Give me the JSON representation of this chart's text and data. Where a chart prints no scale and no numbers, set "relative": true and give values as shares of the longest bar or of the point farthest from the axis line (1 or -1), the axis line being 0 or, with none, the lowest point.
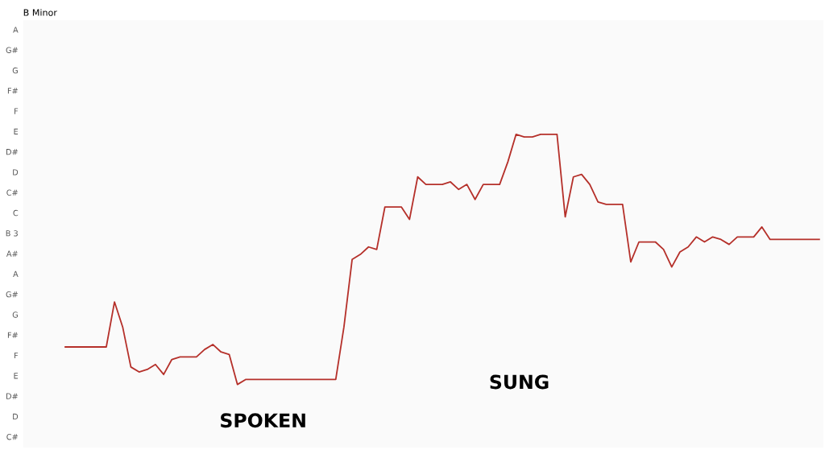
{
  "chart_data": {
    "type": "line",
    "title": "B Minor",
    "relative": true,
    "categories": [
      null,
      null,
      null,
      null,
      null,
      null,
      null,
      null,
      null,
      null,
      null,
      null,
      null,
      null,
      null,
      null,
      null,
      null,
      null,
      null,
      null,
      null,
      null,
      null,
      null,
      null,
      null,
      null,
      null,
      null,
      null,
      null,
      null,
      null,
      null,
      null,
      null,
      null,
      null,
      null,
      null,
      null,
      null,
      null,
      null,
      null,
      null,
      null,
      null,
      null,
      null,
      null,
      null,
      null,
      null,
      null,
      null,
      null,
      null,
      null,
      null,
      null,
      null,
      null,
      null,
      null,
      null,
      null,
      null,
      null,
      null,
      null,
      null,
      null,
      null,
      null,
      null,
      null,
      null,
      null,
      null,
      null,
      null,
      null,
      null,
      null,
      null,
      null,
      null,
      null,
      null,
      null,
      null
    ],
    "series": [
      {
        "color": "#b5302a",
        "values": [
          0.15,
          0.15,
          0.15,
          0.15,
          0.15,
          0.15,
          0.33,
          0.23,
          0.07,
          0.05,
          0.06,
          0.08,
          0.04,
          0.1,
          0.11,
          0.11,
          0.11,
          0.14,
          0.16,
          0.13,
          0.12,
          0,
          0.02,
          0.02,
          0.02,
          0.02,
          0.02,
          0.02,
          0.02,
          0.02,
          0.02,
          0.02,
          0.02,
          0.02,
          0.23,
          0.5,
          0.52,
          0.55,
          0.54,
          0.71,
          0.71,
          0.71,
          0.66,
          0.83,
          0.8,
          0.8,
          0.8,
          0.81,
          0.78,
          0.8,
          0.74,
          0.8,
          0.8,
          0.8,
          0.89,
          1,
          0.99,
          0.99,
          1,
          1,
          1,
          0.67,
          0.83,
          0.84,
          0.8,
          0.73,
          0.72,
          0.72,
          0.72,
          0.49,
          0.57,
          0.57,
          0.57,
          0.54,
          0.47,
          0.53,
          0.55,
          0.59,
          0.57,
          0.59,
          0.58,
          0.56,
          0.59,
          0.59,
          0.59,
          0.63,
          0.58,
          0.58,
          0.58,
          0.58,
          0.58,
          0.58,
          0.58
        ]
      }
    ],
    "annotations": [
      "SPOKEN",
      "SUNG",
      "C#",
      "D",
      "D#",
      "E",
      "F",
      "F#",
      "G",
      "G#",
      "A",
      "A#",
      "B 3",
      "C",
      "C#",
      "D",
      "D#",
      "E",
      "F",
      "F#",
      "G",
      "G#",
      "A"
    ],
    "legend": false,
    "marker": "none",
    "line_style": "solid"
  }
}
